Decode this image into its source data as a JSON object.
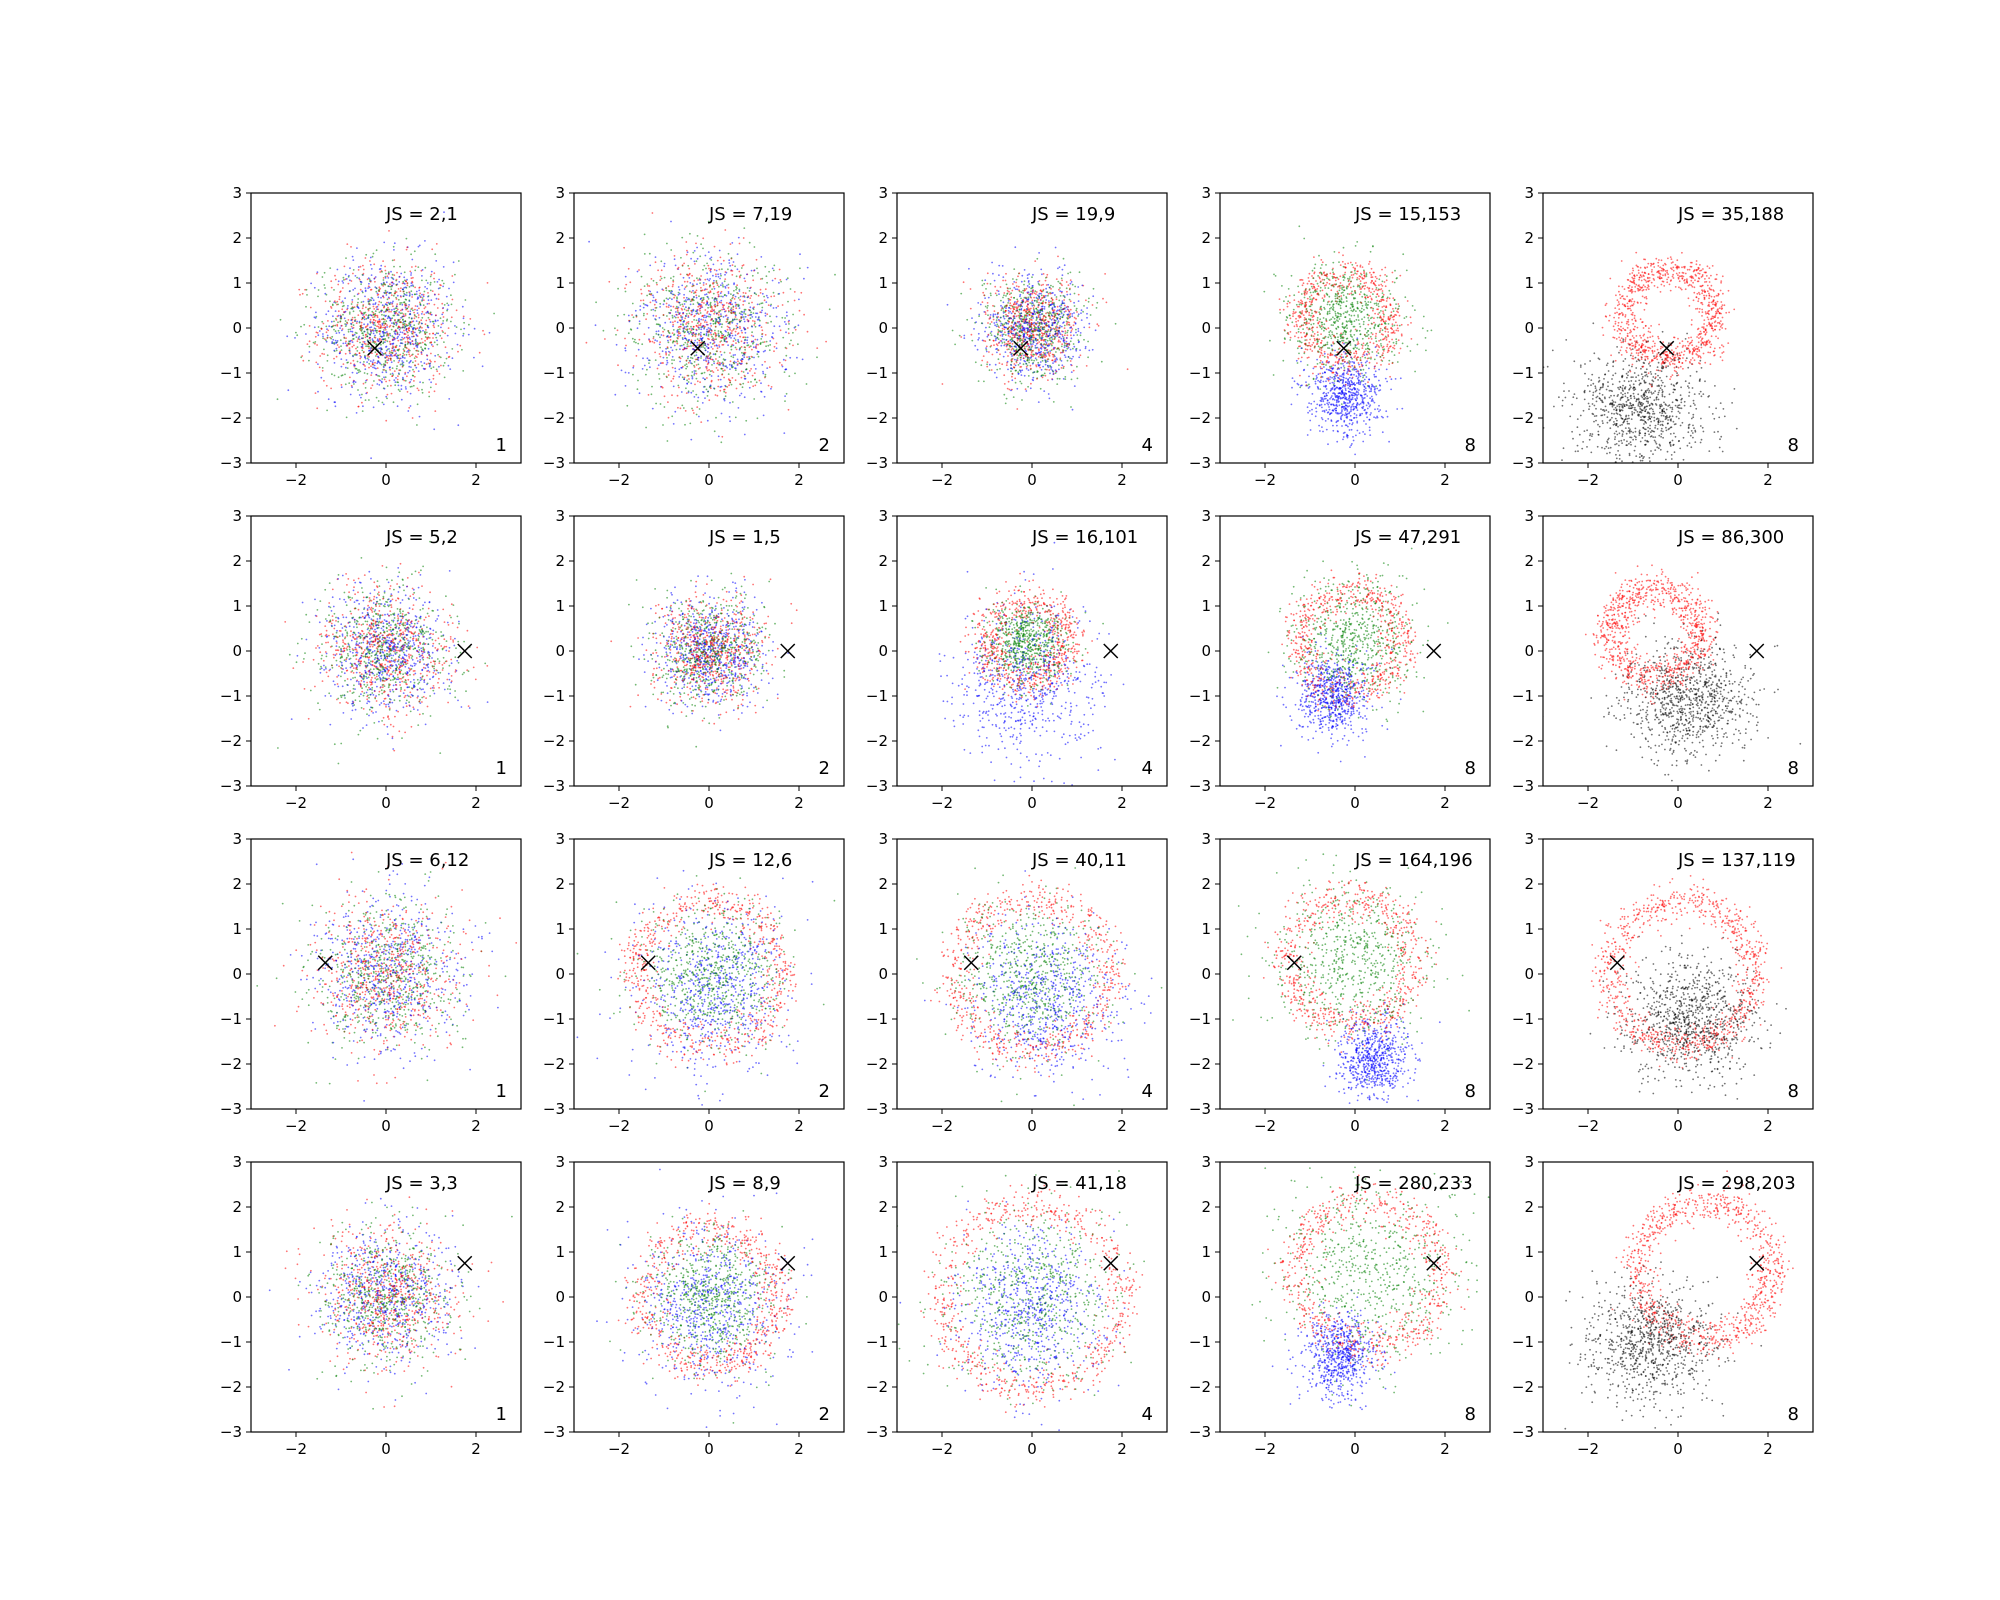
{
  "chart_data": {
    "type": "scatter",
    "layout": {
      "rows": 4,
      "cols": 5
    },
    "xlim": [
      -3,
      3
    ],
    "ylim": [
      -3,
      3
    ],
    "xticks": [
      -2,
      0,
      2
    ],
    "yticks": [
      -3,
      -2,
      -1,
      0,
      1,
      2,
      3
    ],
    "grid": false,
    "colors": {
      "red": "#ff0000",
      "green": "#008000",
      "blue": "#0000ff",
      "black": "#000000"
    },
    "panels": [
      {
        "js_label": "JS = 2,1",
        "corner_label": "1",
        "marker": [
          -0.25,
          -0.45
        ],
        "pattern": "blob",
        "radius": 1.0,
        "colors": [
          "red",
          "green",
          "blue"
        ]
      },
      {
        "js_label": "JS = 7,19",
        "corner_label": "2",
        "marker": [
          -0.25,
          -0.45
        ],
        "pattern": "blob",
        "radius": 1.1,
        "colors": [
          "red",
          "green",
          "blue"
        ]
      },
      {
        "js_label": "JS = 19,9",
        "corner_label": "4",
        "marker": [
          -0.25,
          -0.45
        ],
        "pattern": "blob",
        "radius": 0.75,
        "colors": [
          "red",
          "green",
          "blue"
        ]
      },
      {
        "js_label": "JS = 15,153",
        "corner_label": "8",
        "marker": [
          -0.25,
          -0.45
        ],
        "pattern": "ring3",
        "ring_center": [
          -0.2,
          0.2
        ],
        "ring_radius": 1.0,
        "blue_center": [
          -0.2,
          -1.5
        ],
        "colors": [
          "red",
          "green",
          "blue"
        ]
      },
      {
        "js_label": "JS = 35,188",
        "corner_label": "8",
        "marker": [
          -0.25,
          -0.45
        ],
        "pattern": "ring2",
        "ring_center": [
          -0.2,
          0.3
        ],
        "ring_radius": 1.0,
        "black_center": [
          -0.8,
          -1.8
        ],
        "colors": [
          "red",
          "black"
        ]
      },
      {
        "js_label": "JS = 5,2",
        "corner_label": "1",
        "marker": [
          1.75,
          0.0
        ],
        "pattern": "blob",
        "radius": 0.95,
        "colors": [
          "red",
          "green",
          "blue"
        ]
      },
      {
        "js_label": "JS = 1,5",
        "corner_label": "2",
        "marker": [
          1.75,
          0.0
        ],
        "pattern": "blob",
        "radius": 0.8,
        "colors": [
          "red",
          "green",
          "blue"
        ]
      },
      {
        "js_label": "JS = 16,101",
        "corner_label": "4",
        "marker": [
          1.75,
          0.0
        ],
        "pattern": "ring3b",
        "ring_center": [
          -0.1,
          0.2
        ],
        "ring_radius": 0.9,
        "blue_center": [
          -0.1,
          -0.8
        ],
        "colors": [
          "red",
          "green",
          "blue"
        ]
      },
      {
        "js_label": "JS = 47,291",
        "corner_label": "8",
        "marker": [
          1.75,
          0.0
        ],
        "pattern": "ring3",
        "ring_center": [
          -0.1,
          0.2
        ],
        "ring_radius": 1.1,
        "blue_center": [
          -0.5,
          -1.0
        ],
        "colors": [
          "red",
          "green",
          "blue"
        ]
      },
      {
        "js_label": "JS = 86,300",
        "corner_label": "8",
        "marker": [
          1.75,
          0.0
        ],
        "pattern": "ring2",
        "ring_center": [
          -0.5,
          0.4
        ],
        "ring_radius": 1.0,
        "black_center": [
          0.2,
          -1.1
        ],
        "colors": [
          "red",
          "black"
        ]
      },
      {
        "js_label": "JS = 6,12",
        "corner_label": "1",
        "marker": [
          -1.35,
          0.25
        ],
        "pattern": "blob",
        "radius": 1.1,
        "colors": [
          "red",
          "green",
          "blue"
        ]
      },
      {
        "js_label": "JS = 12,6",
        "corner_label": "2",
        "marker": [
          -1.35,
          0.25
        ],
        "pattern": "ring3b",
        "ring_center": [
          0.0,
          0.0
        ],
        "ring_radius": 1.6,
        "blue_center": [
          0.1,
          -0.3
        ],
        "colors": [
          "red",
          "green",
          "blue"
        ]
      },
      {
        "js_label": "JS = 40,11",
        "corner_label": "4",
        "marker": [
          -1.35,
          0.25
        ],
        "pattern": "ring3b",
        "ring_center": [
          0.0,
          0.0
        ],
        "ring_radius": 1.7,
        "blue_center": [
          0.3,
          -0.6
        ],
        "colors": [
          "red",
          "green",
          "blue"
        ]
      },
      {
        "js_label": "JS = 164,196",
        "corner_label": "8",
        "marker": [
          -1.35,
          0.25
        ],
        "pattern": "ring3",
        "ring_center": [
          -0.1,
          0.3
        ],
        "ring_radius": 1.4,
        "blue_center": [
          0.4,
          -1.9
        ],
        "colors": [
          "red",
          "green",
          "blue"
        ]
      },
      {
        "js_label": "JS = 137,119",
        "corner_label": "8",
        "marker": [
          -1.35,
          0.25
        ],
        "pattern": "ring2",
        "ring_center": [
          0.1,
          0.0
        ],
        "ring_radius": 1.6,
        "black_center": [
          0.3,
          -1.0
        ],
        "colors": [
          "red",
          "black"
        ]
      },
      {
        "js_label": "JS = 3,3",
        "corner_label": "1",
        "marker": [
          1.75,
          0.75
        ],
        "pattern": "blob",
        "radius": 1.0,
        "colors": [
          "red",
          "green",
          "blue"
        ]
      },
      {
        "js_label": "JS = 8,9",
        "corner_label": "2",
        "marker": [
          1.75,
          0.75
        ],
        "pattern": "ring3b",
        "ring_center": [
          0.0,
          0.0
        ],
        "ring_radius": 1.5,
        "blue_center": [
          0.0,
          -0.2
        ],
        "colors": [
          "red",
          "green",
          "blue"
        ]
      },
      {
        "js_label": "JS = 41,18",
        "corner_label": "4",
        "marker": [
          1.75,
          0.75
        ],
        "pattern": "ring3b",
        "ring_center": [
          0.0,
          0.0
        ],
        "ring_radius": 2.0,
        "blue_center": [
          0.0,
          -0.3
        ],
        "colors": [
          "red",
          "green",
          "blue"
        ]
      },
      {
        "js_label": "JS = 280,233",
        "corner_label": "8",
        "marker": [
          1.75,
          0.75
        ],
        "pattern": "ring3",
        "ring_center": [
          0.3,
          0.5
        ],
        "ring_radius": 1.6,
        "blue_center": [
          -0.3,
          -1.3
        ],
        "colors": [
          "red",
          "green",
          "blue"
        ]
      },
      {
        "js_label": "JS = 298,203",
        "corner_label": "8",
        "marker": [
          1.75,
          0.75
        ],
        "pattern": "ring2",
        "ring_center": [
          0.6,
          0.6
        ],
        "ring_radius": 1.5,
        "black_center": [
          -0.6,
          -1.0
        ],
        "colors": [
          "red",
          "black"
        ]
      }
    ]
  }
}
